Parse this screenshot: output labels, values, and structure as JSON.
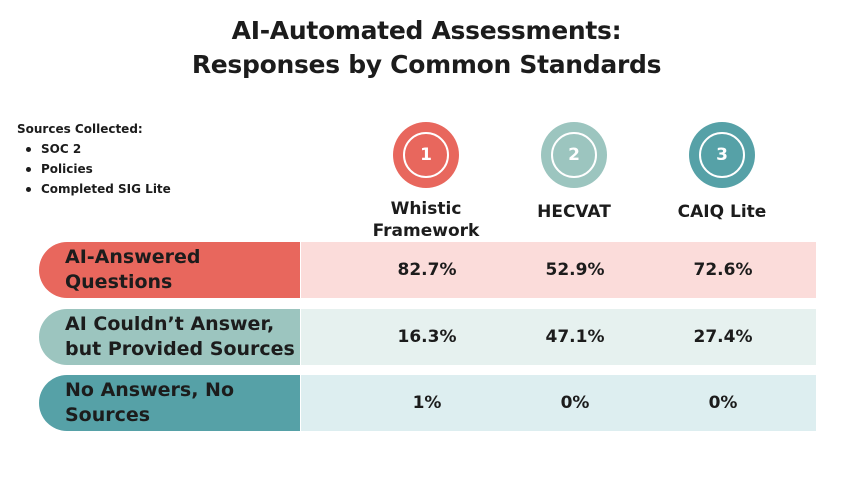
{
  "title_line1": "AI-Automated Assessments:",
  "title_line2": "Responses by Common Standards",
  "sources": {
    "heading": "Sources Collected:",
    "items": [
      "SOC 2",
      "Policies",
      "Completed SIG Lite"
    ]
  },
  "colors": {
    "red": "#e8675d",
    "red_light": "#fbdcda",
    "sage": "#9cc5bf",
    "sage_light": "#e6f1ef",
    "teal": "#56a1a7",
    "teal_light": "#ddeef0"
  },
  "chart_data": {
    "type": "table",
    "title": "AI-Automated Assessments: Responses by Common Standards",
    "columns": [
      {
        "number": "1",
        "label": "Whistic\nFramework"
      },
      {
        "number": "2",
        "label": "HECVAT"
      },
      {
        "number": "3",
        "label": "CAIQ Lite"
      }
    ],
    "rows": [
      {
        "label": "AI-Answered\nQuestions",
        "values": [
          "82.7%",
          "52.9%",
          "72.6%"
        ]
      },
      {
        "label": "AI Couldn’t Answer,\nbut Provided Sources",
        "values": [
          "16.3%",
          "47.1%",
          "27.4%"
        ]
      },
      {
        "label": "No Answers, No\nSources",
        "values": [
          "1%",
          "0%",
          "0%"
        ]
      }
    ]
  }
}
